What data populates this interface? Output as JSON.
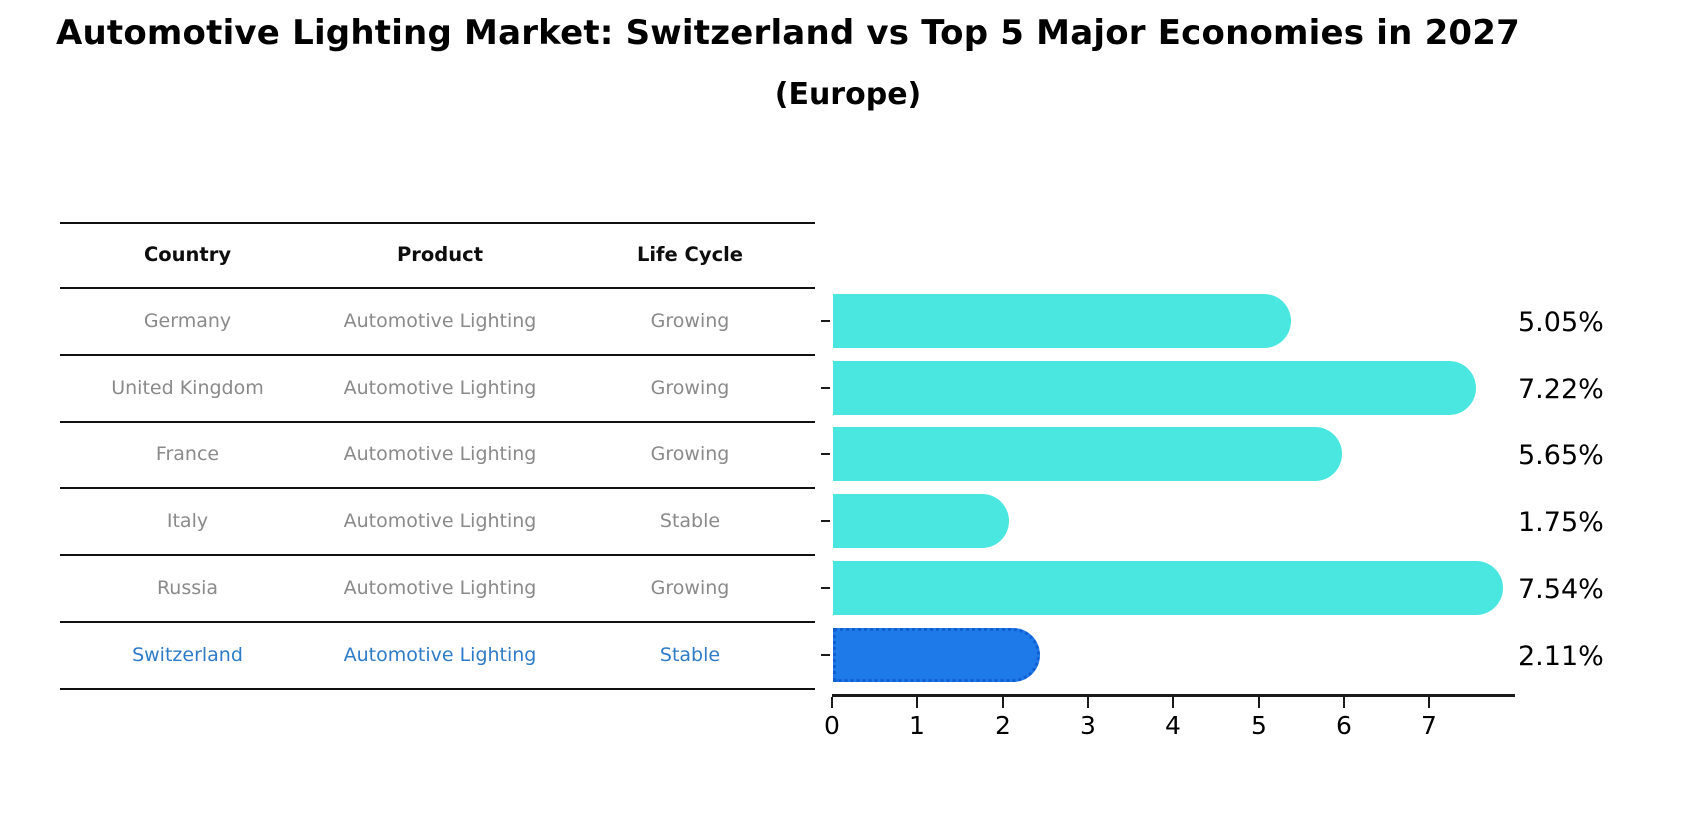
{
  "title": "Automotive Lighting Market: Switzerland vs Top 5 Major Economies in 2027",
  "subtitle": "(Europe)",
  "table": {
    "headers": [
      "Country",
      "Product",
      "Life Cycle"
    ],
    "rows": [
      {
        "country": "Germany",
        "product": "Automotive Lighting",
        "life_cycle": "Growing",
        "highlighted": false
      },
      {
        "country": "United Kingdom",
        "product": "Automotive Lighting",
        "life_cycle": "Growing",
        "highlighted": false
      },
      {
        "country": "France",
        "product": "Automotive Lighting",
        "life_cycle": "Growing",
        "highlighted": false
      },
      {
        "country": "Italy",
        "product": "Automotive Lighting",
        "life_cycle": "Stable",
        "highlighted": false
      },
      {
        "country": "Russia",
        "product": "Automotive Lighting",
        "life_cycle": "Growing",
        "highlighted": false
      },
      {
        "country": "Switzerland",
        "product": "Automotive Lighting",
        "life_cycle": "Stable",
        "highlighted": true
      }
    ]
  },
  "chart_data": {
    "type": "bar",
    "orientation": "horizontal",
    "categories": [
      "Germany",
      "United Kingdom",
      "France",
      "Italy",
      "Russia",
      "Switzerland"
    ],
    "values": [
      5.05,
      7.22,
      5.65,
      1.75,
      7.54,
      2.11
    ],
    "value_labels": [
      "5.05%",
      "7.22%",
      "5.65%",
      "1.75%",
      "7.54%",
      "2.11%"
    ],
    "title": "Automotive Lighting Market: Switzerland vs Top 5 Major Economies in 2027 (Europe)",
    "xlabel": "",
    "ylabel": "",
    "xlim": [
      0,
      8
    ],
    "x_ticks": [
      0,
      1,
      2,
      3,
      4,
      5,
      6,
      7
    ],
    "grid": false,
    "legend": "none",
    "highlight_index": 5
  },
  "colors": {
    "bar_color": "#4ae7e1",
    "highlight_bar_fill": "#1e7ae8",
    "highlight_bar_border": "#0f5ed2",
    "highlight_text": "#2e7cc9",
    "table_text": "#8a8a8a",
    "header_text": "#0d0d0d",
    "axis": "#1a1a1a"
  }
}
